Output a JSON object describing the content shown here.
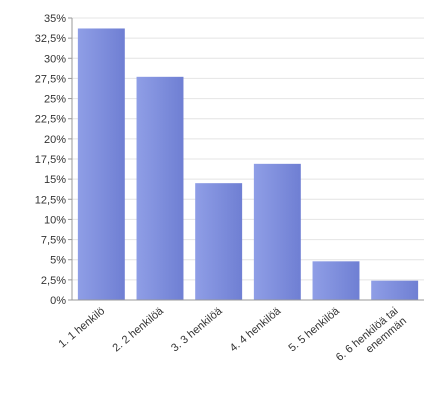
{
  "chart_data": {
    "type": "bar",
    "categories": [
      "1. 1 henkilö",
      "2. 2 henkilöä",
      "3. 3 henkilöä",
      "4. 4 henkilöä",
      "5. 5 henkilöä",
      "6. 6 henkilöä tai enemmän"
    ],
    "category_lines": [
      [
        "1. 1 henkilö"
      ],
      [
        "2. 2 henkilöä"
      ],
      [
        "3. 3 henkilöä"
      ],
      [
        "4. 4 henkilöä"
      ],
      [
        "5. 5 henkilöä"
      ],
      [
        "6. 6 henkilöä tai",
        "enemmän"
      ]
    ],
    "values": [
      33.7,
      27.7,
      14.5,
      16.9,
      4.8,
      2.4
    ],
    "ylim": [
      0,
      35
    ],
    "yticks": [
      "0%",
      "2,5%",
      "5%",
      "7,5%",
      "10%",
      "12,5%",
      "15%",
      "17,5%",
      "20%",
      "22,5%",
      "25%",
      "27,5%",
      "30%",
      "32,5%",
      "35%"
    ],
    "grid": true,
    "colors": {
      "bar_light": "#8f9ee6",
      "bar_dark": "#6f7fd3",
      "grid": "#e4e4e4",
      "axis": "#999999"
    }
  }
}
